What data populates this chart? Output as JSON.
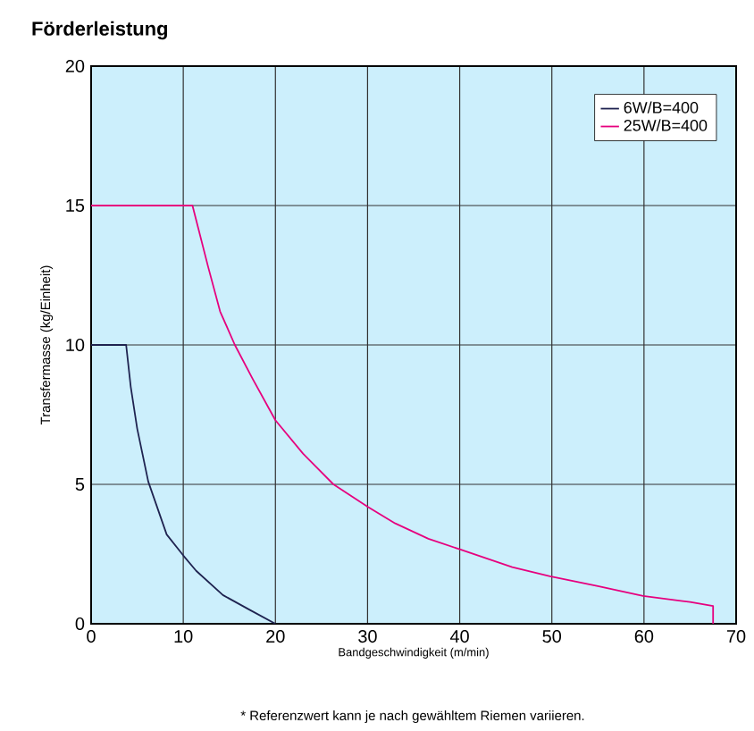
{
  "chart_data": {
    "type": "line",
    "title": "Förderleistung",
    "xlabel": "Bandgeschwindigkeit (m/min)",
    "ylabel": "Transfermasse (kg/Einheit)",
    "annotations": [
      "* Referenzwert kann je nach gewähltem Riemen variieren."
    ],
    "xlim": [
      0,
      70
    ],
    "ylim": [
      0,
      20
    ],
    "xticks": [
      0,
      10,
      20,
      30,
      40,
      50,
      60,
      70
    ],
    "yticks": [
      0,
      5,
      10,
      15,
      20
    ],
    "grid": true,
    "legend": "top right",
    "marker": "none",
    "line_style": "solid",
    "series": [
      {
        "name": "6W/B=400",
        "color": "#1f2350",
        "x": [
          0,
          3.8,
          4.3,
          5.0,
          6.2,
          8.2,
          10.0,
          11.4,
          14.3,
          17.2,
          20
        ],
        "values": [
          10,
          10,
          8.5,
          7.0,
          5.1,
          3.2,
          2.45,
          1.9,
          1.03,
          0.5,
          0
        ]
      },
      {
        "name": "25W/B=400",
        "color": "#e6007e",
        "x": [
          0,
          11,
          12.7,
          14,
          15.6,
          17.5,
          20,
          23,
          26.3,
          30,
          33,
          36.6,
          40,
          45.7,
          49.8,
          55,
          59.9,
          65,
          67.5,
          67.5
        ],
        "values": [
          15,
          15,
          12.8,
          11.2,
          10,
          8.8,
          7.3,
          6.1,
          5,
          4.2,
          3.6,
          3.05,
          2.67,
          2.03,
          1.7,
          1.35,
          1.0,
          0.78,
          0.64,
          0
        ]
      }
    ]
  }
}
